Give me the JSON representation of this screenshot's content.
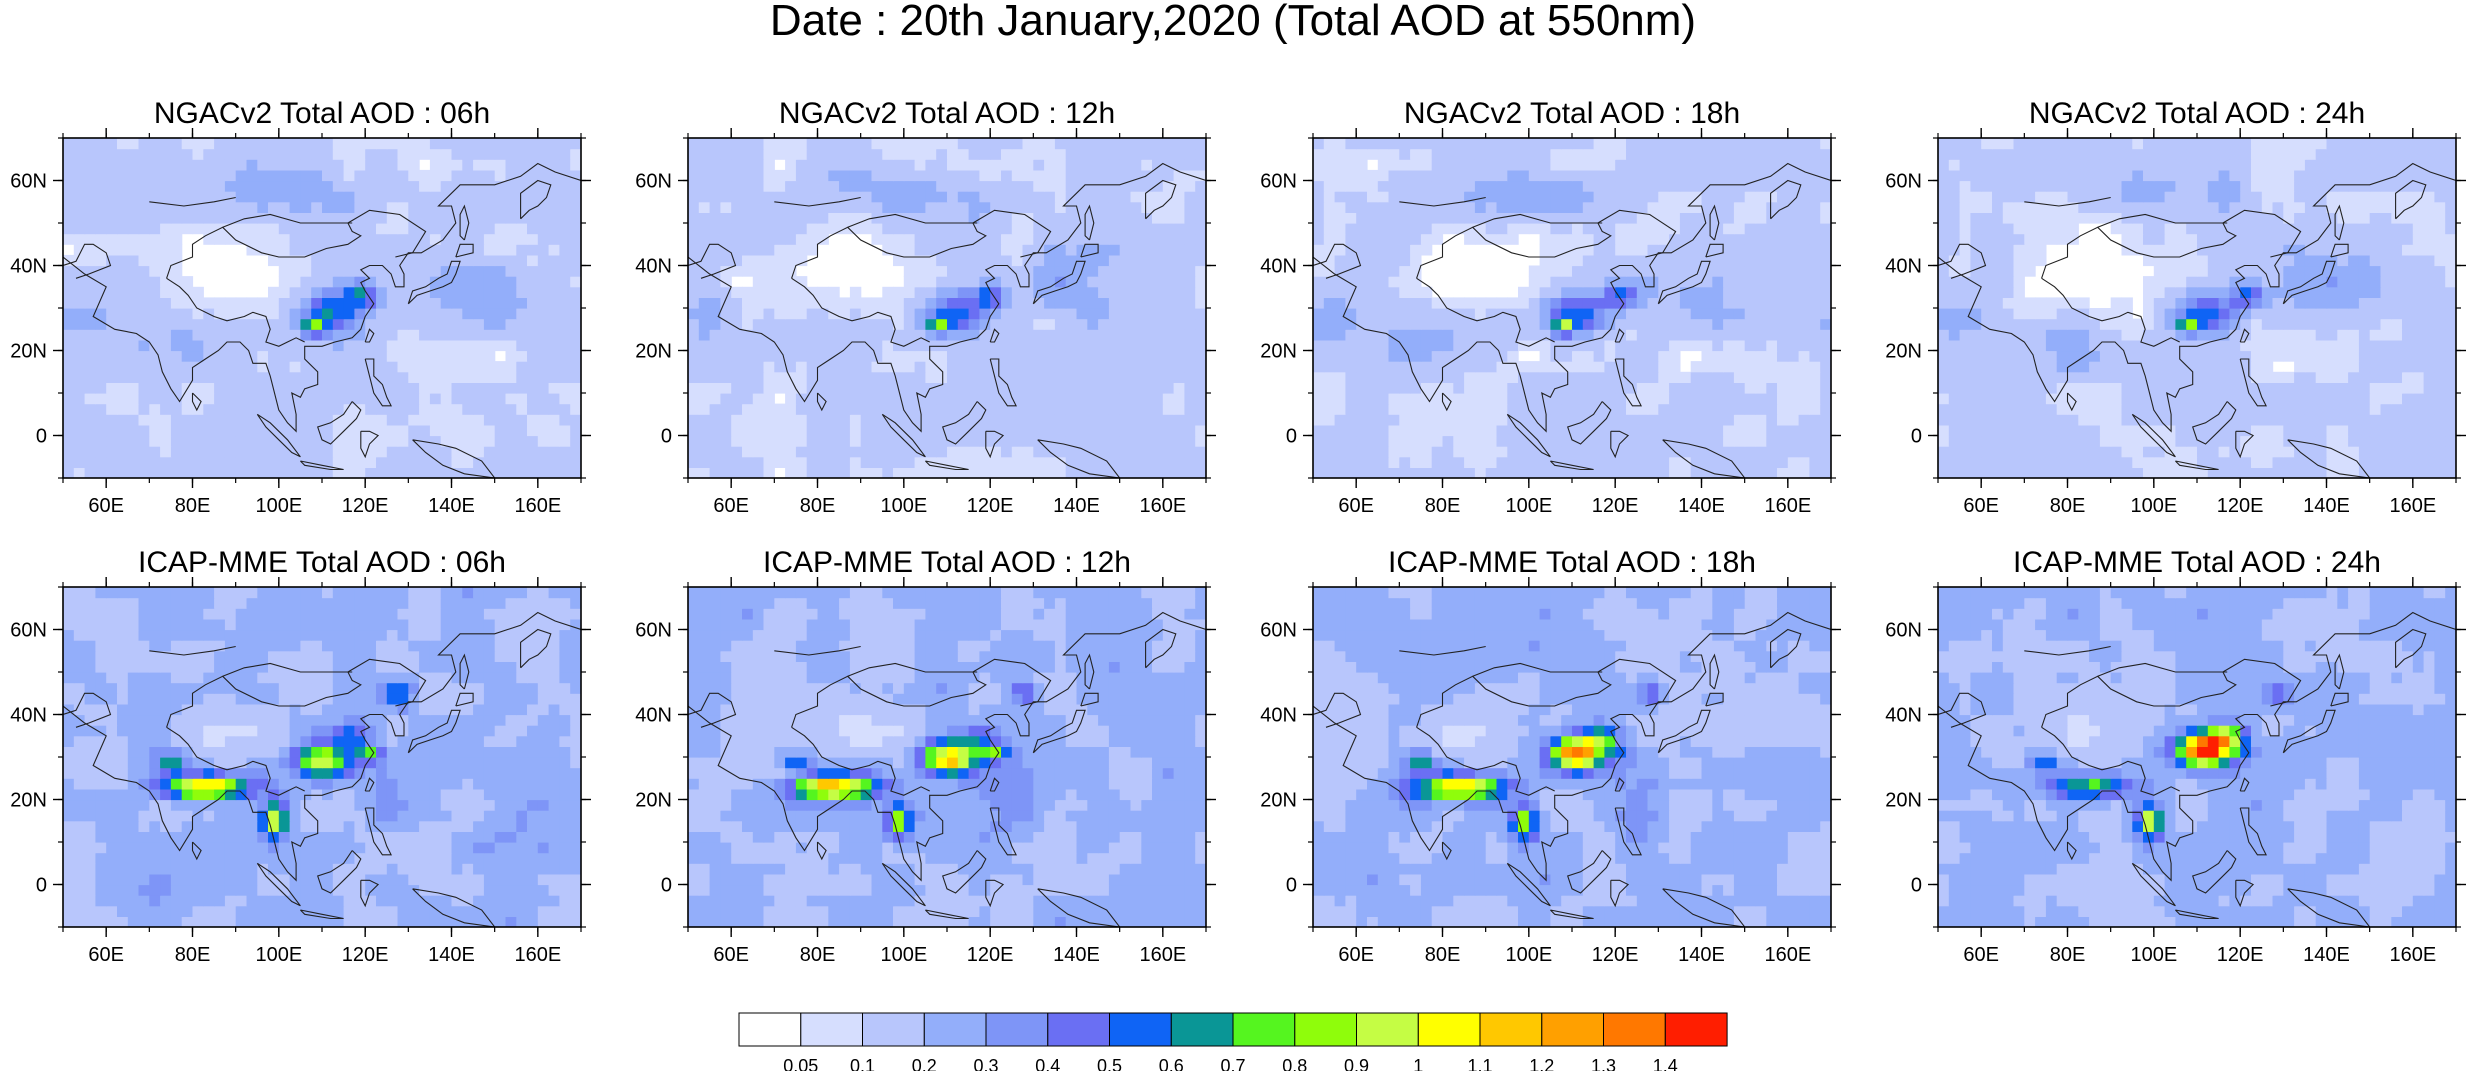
{
  "title": "Date : 20th January,2020 (Total AOD at 550nm)",
  "panels": [
    {
      "title": "NGACv2 Total AOD : 06h",
      "model": "ngac",
      "shift": 0
    },
    {
      "title": "NGACv2 Total AOD : 12h",
      "model": "ngac",
      "shift": 1
    },
    {
      "title": "NGACv2 Total AOD : 18h",
      "model": "ngac",
      "shift": 2
    },
    {
      "title": "NGACv2 Total AOD : 24h",
      "model": "ngac",
      "shift": 3
    },
    {
      "title": "ICAP-MME Total AOD : 06h",
      "model": "icap",
      "shift": 0
    },
    {
      "title": "ICAP-MME Total AOD : 12h",
      "model": "icap",
      "shift": 1
    },
    {
      "title": "ICAP-MME Total AOD : 18h",
      "model": "icap",
      "shift": 2
    },
    {
      "title": "ICAP-MME Total AOD : 24h",
      "model": "icap",
      "shift": 3
    }
  ],
  "map": {
    "lon_range": [
      50,
      170
    ],
    "lat_range": [
      -10,
      70
    ],
    "lon_ticks": [
      {
        "value": 60,
        "label": "60E"
      },
      {
        "value": 80,
        "label": "80E"
      },
      {
        "value": 100,
        "label": "100E"
      },
      {
        "value": 120,
        "label": "120E"
      },
      {
        "value": 140,
        "label": "140E"
      },
      {
        "value": 160,
        "label": "160E"
      }
    ],
    "lat_ticks": [
      {
        "value": 0,
        "label": "0"
      },
      {
        "value": 20,
        "label": "20N"
      },
      {
        "value": 40,
        "label": "40N"
      },
      {
        "value": 60,
        "label": "60N"
      }
    ]
  },
  "colorbar": {
    "colors": [
      "#ffffff",
      "#d6defe",
      "#b8c6fc",
      "#93aefa",
      "#7e95f7",
      "#6a6ff3",
      "#0f64f5",
      "#0a9696",
      "#55f51f",
      "#8ffd0b",
      "#c5fd44",
      "#ffff00",
      "#ffc800",
      "#ffa000",
      "#ff7800",
      "#ff1e00"
    ],
    "labels": [
      "0.05",
      "0.1",
      "0.2",
      "0.3",
      "0.4",
      "0.5",
      "0.6",
      "0.7",
      "0.8",
      "0.9",
      "1",
      "1.1",
      "1.2",
      "1.3",
      "1.4"
    ]
  },
  "colors": {
    "coastline": "#222222",
    "frame": "#000000"
  }
}
